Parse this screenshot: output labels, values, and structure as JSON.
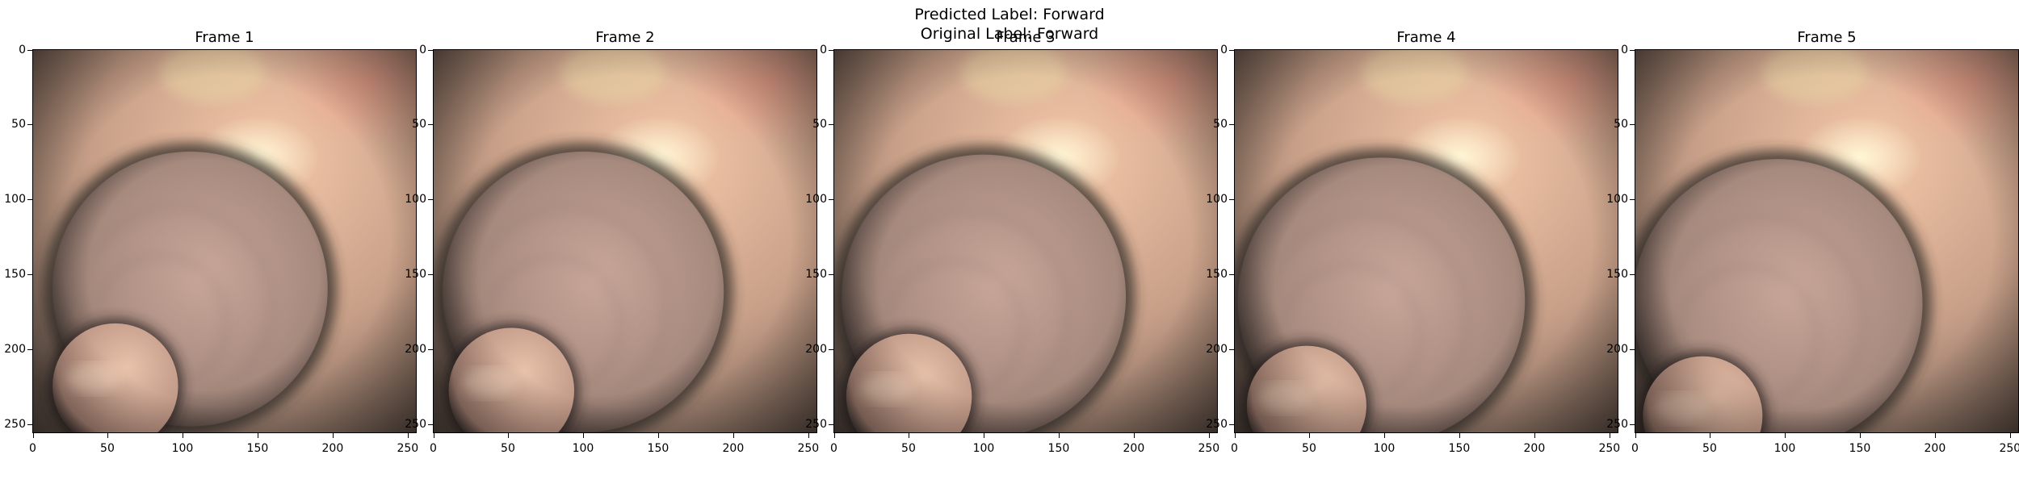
{
  "figure": {
    "predicted_label": "Predicted Label: Forward",
    "original_label": "Original Label: Forward"
  },
  "frames": [
    {
      "title": "Frame 1",
      "lumen": {
        "cx": 105,
        "cy": 160,
        "r": 92,
        "inner_cx": 55,
        "inner_cy": 225,
        "inner_r": 42
      }
    },
    {
      "title": "Frame 2",
      "lumen": {
        "cx": 100,
        "cy": 162,
        "r": 94,
        "inner_cx": 52,
        "inner_cy": 228,
        "inner_r": 42
      }
    },
    {
      "title": "Frame 3",
      "lumen": {
        "cx": 100,
        "cy": 165,
        "r": 95,
        "inner_cx": 50,
        "inner_cy": 232,
        "inner_r": 42
      }
    },
    {
      "title": "Frame 4",
      "lumen": {
        "cx": 98,
        "cy": 168,
        "r": 96,
        "inner_cx": 48,
        "inner_cy": 238,
        "inner_r": 40
      }
    },
    {
      "title": "Frame 5",
      "lumen": {
        "cx": 95,
        "cy": 170,
        "r": 97,
        "inner_cx": 45,
        "inner_cy": 245,
        "inner_r": 40
      }
    }
  ],
  "axes": {
    "x_ticks": [
      "0",
      "50",
      "100",
      "150",
      "200",
      "250"
    ],
    "y_ticks": [
      "0",
      "50",
      "100",
      "150",
      "200",
      "250"
    ],
    "x_range": [
      0,
      256
    ],
    "y_range": [
      0,
      256
    ]
  },
  "colors": {
    "tissue_light": "#f4c7a8",
    "tissue_mid": "#c79f88",
    "tissue_dark": "#4a3f3a",
    "highlight": "#fff7d6",
    "upper_right": "#f3a690"
  }
}
